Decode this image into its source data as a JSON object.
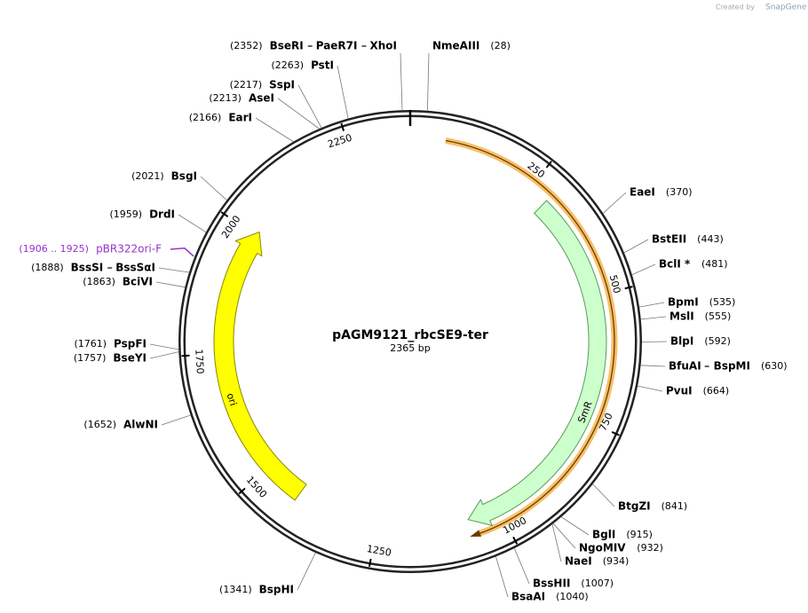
{
  "header": {
    "credit": "Created by",
    "brand": "SnapGene"
  },
  "plasmid": {
    "name": "pAGM9121_rbcSE9-ter",
    "length": "2365 bp"
  },
  "ticks": [
    250,
    500,
    750,
    1000,
    1250,
    1500,
    1750,
    2000,
    2250
  ],
  "features": [
    {
      "label": "SmR"
    },
    {
      "label": "ori"
    }
  ],
  "primer": {
    "range": "(1906 .. 1925)",
    "name": "pBR322ori-F"
  },
  "sites": [
    {
      "names": [
        "NmeAIII"
      ],
      "position": "(28)"
    },
    {
      "names": [
        "EaeI"
      ],
      "position": "(370)"
    },
    {
      "names": [
        "BstEII"
      ],
      "position": "(443)"
    },
    {
      "names": [
        "BclI *"
      ],
      "position": "(481)"
    },
    {
      "names": [
        "BpmI"
      ],
      "position": "(535)"
    },
    {
      "names": [
        "MslI"
      ],
      "position": "(555)"
    },
    {
      "names": [
        "BlpI"
      ],
      "position": "(592)"
    },
    {
      "names": [
        "BfuAI",
        "BspMI"
      ],
      "position": "(630)"
    },
    {
      "names": [
        "PvuI"
      ],
      "position": "(664)"
    },
    {
      "names": [
        "BtgZI"
      ],
      "position": "(841)"
    },
    {
      "names": [
        "BglI"
      ],
      "position": "(915)"
    },
    {
      "names": [
        "NgoMIV"
      ],
      "position": "(932)"
    },
    {
      "names": [
        "NaeI"
      ],
      "position": "(934)"
    },
    {
      "names": [
        "BssHII"
      ],
      "position": "(1007)"
    },
    {
      "names": [
        "BsaAI"
      ],
      "position": "(1040)"
    },
    {
      "names": [
        "BspHI"
      ],
      "position": "(1341)"
    },
    {
      "names": [
        "AlwNI"
      ],
      "position": "(1652)"
    },
    {
      "names": [
        "BseYI"
      ],
      "position": "(1757)"
    },
    {
      "names": [
        "PspFI"
      ],
      "position": "(1761)"
    },
    {
      "names": [
        "BciVI"
      ],
      "position": "(1863)"
    },
    {
      "names": [
        "BssSI",
        "BssSαI"
      ],
      "position": "(1888)"
    },
    {
      "names": [
        "DrdI"
      ],
      "position": "(1959)"
    },
    {
      "names": [
        "BsgI"
      ],
      "position": "(2021)"
    },
    {
      "names": [
        "EarI"
      ],
      "position": "(2166)"
    },
    {
      "names": [
        "AseI"
      ],
      "position": "(2213)"
    },
    {
      "names": [
        "SspI"
      ],
      "position": "(2217)"
    },
    {
      "names": [
        "PstI"
      ],
      "position": "(2263)"
    },
    {
      "names": [
        "BseRI",
        "PaeR7I",
        "XhoI"
      ],
      "position": "(2352)"
    }
  ]
}
